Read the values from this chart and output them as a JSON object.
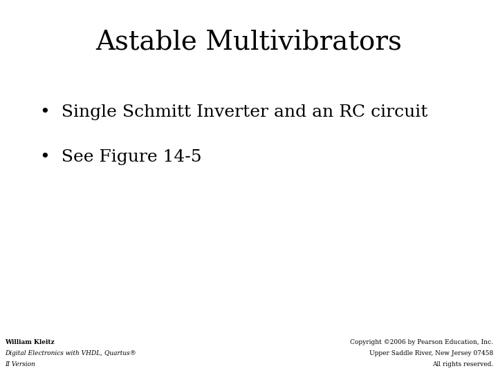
{
  "title": "Astable Multivibrators",
  "bullet1": "•  Single Schmitt Inverter and an RC circuit",
  "bullet2": "•  See Figure 14-5",
  "bottom_left_line1": "William Kleitz",
  "bottom_left_line2": "Digital Electronics with VHDL, Quartus®",
  "bottom_left_line3": "II Version",
  "bottom_right_line1": "Copyright ©2006 by Pearson Education, Inc.",
  "bottom_right_line2": "Upper Saddle River, New Jersey 07458",
  "bottom_right_line3": "All rights reserved.",
  "bg_color": "#ffffff",
  "title_color": "#000000",
  "text_color": "#000000",
  "footer_color": "#000000",
  "title_fontsize": 28,
  "bullet_fontsize": 18,
  "footer_fontsize": 6.5
}
